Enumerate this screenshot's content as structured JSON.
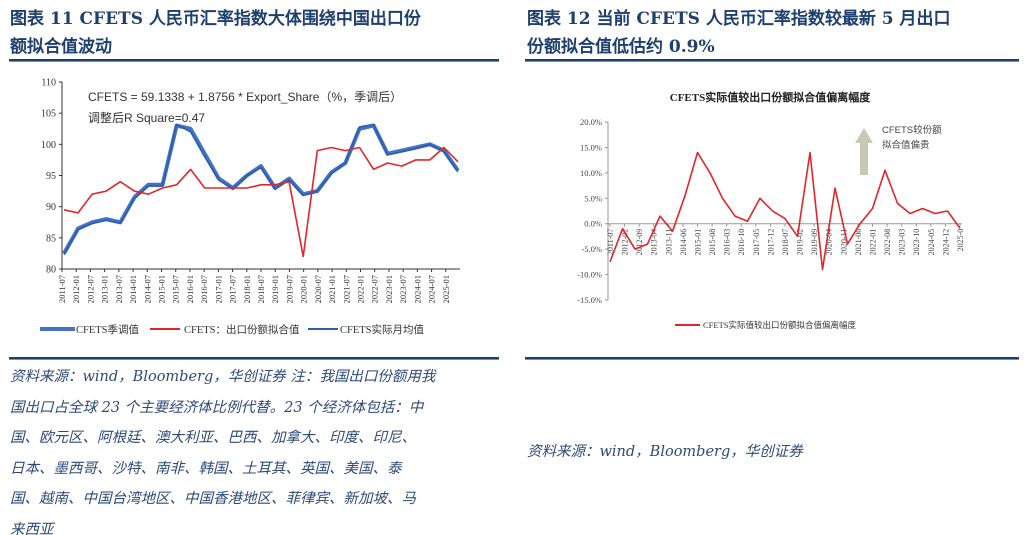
{
  "left_panel": {
    "title_line1": "图表 11   CFETS 人民币汇率指数大体围绕中国出口份",
    "title_line2": "额拟合值波动",
    "source_lines": [
      "资料来源：wind，Bloomberg，华创证券   注：我国出口份额用我",
      "国出口占全球 23 个主要经济体比例代替。23 个经济体包括：中",
      "国、欧元区、阿根廷、澳大利亚、巴西、加拿大、印度、印尼、",
      "日本、墨西哥、沙特、南非、韩国、土耳其、英国、美国、泰",
      "国、越南、中国台湾地区、中国香港地区、菲律宾、新加坡、马",
      "来西亚"
    ]
  },
  "right_panel": {
    "title_line1": "图表 12   当前 CFETS 人民币汇率指数较最新 5 月出口",
    "title_line2": "份额拟合值低估约 0.9%",
    "source": "资料来源：wind，Bloomberg，华创证券"
  },
  "colors": {
    "title": "#1f3f6e",
    "seasonal_blue": "#4472c4",
    "monthly_blue": "#2e5fa8",
    "fit_red": "#e0262b",
    "arrow": "#c8c6b4"
  },
  "chart_data": [
    {
      "type": "line",
      "title": "",
      "annotation_line1": "CFETS = 59.1338 + 1.8756 * Export_Share（%，季调后）",
      "annotation_line2": "调整后R Square=0.47",
      "ylim": [
        80,
        110
      ],
      "yticks": [
        80,
        85,
        90,
        95,
        100,
        105,
        110
      ],
      "xlabel": "",
      "ylabel": "",
      "x_tick_labels": [
        "2011-07",
        "2012-01",
        "2012-07",
        "2013-01",
        "2013-07",
        "2014-01",
        "2014-07",
        "2015-01",
        "2015-07",
        "2016-01",
        "2016-07",
        "2017-01",
        "2017-07",
        "2018-01",
        "2018-07",
        "2019-01",
        "2019-07",
        "2020-01",
        "2020-07",
        "2021-01",
        "2021-07",
        "2022-01",
        "2022-07",
        "2023-01",
        "2023-07",
        "2024-01",
        "2024-07",
        "2025-01"
      ],
      "legend": [
        "CFETS季调值",
        "CFETS：出口份额拟合值",
        "CFETS实际月均值"
      ],
      "legend_position": "bottom",
      "x": [
        "2011-07",
        "2012-01",
        "2012-07",
        "2013-01",
        "2013-07",
        "2014-01",
        "2014-07",
        "2015-01",
        "2015-07",
        "2016-01",
        "2016-07",
        "2017-01",
        "2017-07",
        "2018-01",
        "2018-07",
        "2019-01",
        "2019-07",
        "2020-01",
        "2020-07",
        "2021-01",
        "2021-07",
        "2022-01",
        "2022-07",
        "2023-01",
        "2023-07",
        "2024-01",
        "2024-07",
        "2025-01",
        "2025-05"
      ],
      "series": [
        {
          "name": "CFETS季调值",
          "values": [
            82.5,
            86.5,
            87.5,
            88.0,
            87.5,
            91.5,
            93.5,
            93.5,
            103.0,
            102.5,
            98.5,
            94.5,
            93.0,
            95.0,
            96.5,
            93.0,
            94.5,
            92.0,
            92.5,
            95.5,
            97.0,
            102.5,
            103.0,
            98.5,
            99.0,
            99.5,
            100.0,
            99.0,
            95.8
          ]
        },
        {
          "name": "CFETS：出口份额拟合值",
          "values": [
            89.5,
            89.0,
            92.0,
            92.5,
            94.0,
            92.5,
            92.0,
            93.0,
            93.5,
            96.0,
            93.0,
            93.0,
            93.0,
            93.0,
            93.5,
            93.5,
            94.0,
            82.0,
            99.0,
            99.5,
            99.0,
            99.5,
            96.0,
            97.0,
            96.5,
            97.5,
            97.5,
            99.5,
            97.2
          ]
        },
        {
          "name": "CFETS实际月均值",
          "values": [
            82.3,
            86.3,
            87.3,
            87.8,
            87.3,
            91.3,
            93.3,
            93.3,
            103.2,
            102.0,
            98.0,
            94.3,
            92.8,
            95.0,
            96.3,
            92.8,
            94.3,
            91.8,
            92.5,
            95.3,
            97.0,
            102.8,
            103.2,
            98.3,
            98.8,
            99.3,
            100.0,
            98.8,
            95.6
          ]
        }
      ]
    },
    {
      "type": "line",
      "title": "CFETS实际值较出口份额拟合值偏离幅度",
      "ylim": [
        -15,
        20
      ],
      "yticks": [
        "-15.0%",
        "-10.0%",
        "-5.0%",
        "0.0%",
        "5.0%",
        "10.0%",
        "15.0%",
        "20.0%"
      ],
      "x_tick_labels": [
        "2011-07",
        "2012-02",
        "2012-09",
        "2013-04",
        "2013-11",
        "2014-06",
        "2015-01",
        "2015-08",
        "2016-03",
        "2016-10",
        "2017-05",
        "2017-12",
        "2018-07",
        "2019-02",
        "2019-09",
        "2020-04",
        "2020-11",
        "2021-06",
        "2022-01",
        "2022-08",
        "2023-03",
        "2023-10",
        "2024-05",
        "2024-12",
        "2025-0"
      ],
      "annotation": "CFETS较份额拟合值偏贵",
      "annotation_line1": "CFETS较份额",
      "annotation_line2": "拟合值偏贵",
      "legend": [
        "CFETS实际值较出口份额拟合值偏离幅度"
      ],
      "legend_position": "bottom",
      "x": [
        "2011-07",
        "2012-02",
        "2012-09",
        "2013-04",
        "2013-11",
        "2014-06",
        "2015-01",
        "2015-04",
        "2015-08",
        "2016-03",
        "2016-10",
        "2017-05",
        "2017-12",
        "2018-07",
        "2019-02",
        "2019-09",
        "2020-01",
        "2020-04",
        "2020-06",
        "2020-11",
        "2021-06",
        "2022-01",
        "2022-04",
        "2022-08",
        "2023-03",
        "2023-10",
        "2024-05",
        "2024-12",
        "2025-05"
      ],
      "series": [
        {
          "name": "CFETS实际值较出口份额拟合值偏离幅度",
          "values": [
            -7.5,
            -1.0,
            -5.0,
            -4.0,
            1.5,
            -1.5,
            5.5,
            14.0,
            10.0,
            5.0,
            1.5,
            0.5,
            5.0,
            2.5,
            1.0,
            -2.5,
            14.0,
            -9.0,
            7.0,
            -4.0,
            0.0,
            3.0,
            10.5,
            4.0,
            2.0,
            3.0,
            2.0,
            2.5,
            -0.9
          ]
        }
      ]
    }
  ]
}
